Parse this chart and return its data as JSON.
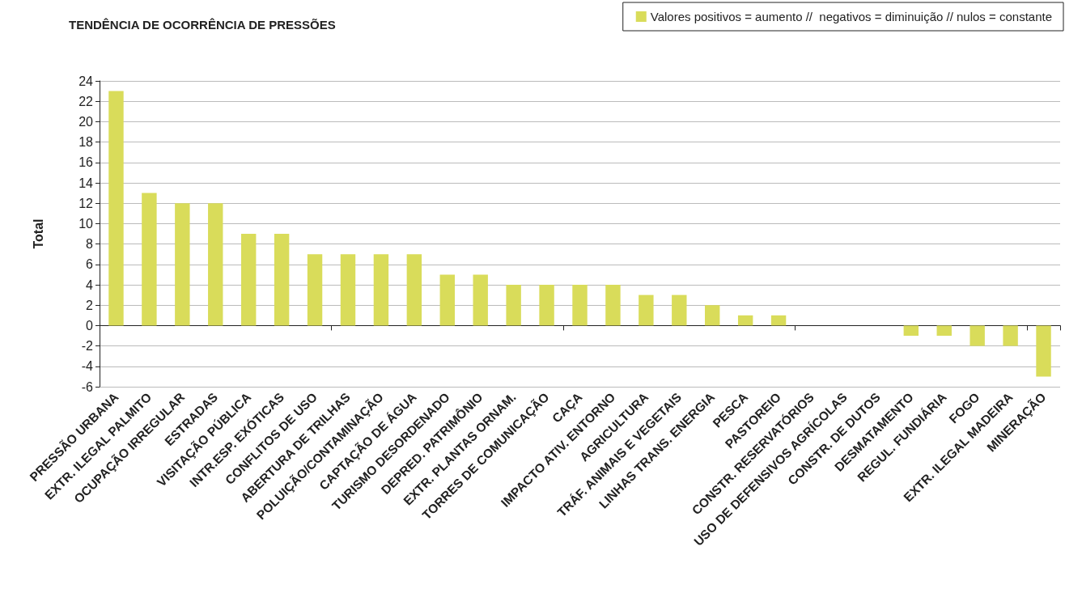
{
  "chart_data": {
    "type": "bar",
    "title": "TENDÊNCIA DE OCORRÊNCIA DE PRESSÕES",
    "ylabel": "Total",
    "categories": [
      "PRESSÃO URBANA",
      "EXTR. ILEGAL PALMITO",
      "OCUPAÇÃO IRREGULAR",
      "ESTRADAS",
      "VISITAÇÃO PÚBLICA",
      "INTR.ESP. EXÓTICAS",
      "CONFLITOS DE USO",
      "ABERTURA DE TRILHAS",
      "POLUIÇÃO/CONTAMINAÇÃO",
      "CAPTAÇÃO DE ÁGUA",
      "TURISMO DESORDENADO",
      "DEPRED. PATRIMÔNIO",
      "EXTR. PLANTAS ORNAM.",
      "TORRES DE COMUNICAÇÃO",
      "CAÇA",
      "IMPACTO ATIV. ENTORNO",
      "AGRICULTURA",
      "TRÁF. ANIMAIS E VEGETAIS",
      "LINHAS TRANS. ENERGIA",
      "PESCA",
      "PASTOREIO",
      "CONSTR. RESERVATÓRIOS",
      "USO DE DEFENSIVOS AGRÍCOLAS",
      "CONSTR. DE DUTOS",
      "DESMATAMENTO",
      "REGUL. FUNDIÁRIA",
      "FOGO",
      "EXTR. ILEGAL MADEIRA",
      "MINERAÇÃO"
    ],
    "series": [
      {
        "name": "Valores positivos = aumento //  negativos = diminuição // nulos = constante",
        "color": "#d9dc5a",
        "values": [
          23,
          13,
          12,
          12,
          9,
          9,
          7,
          7,
          7,
          7,
          5,
          5,
          4,
          4,
          4,
          4,
          3,
          3,
          2,
          1,
          1,
          0,
          0,
          0,
          -1,
          -1,
          -2,
          -2,
          -5
        ]
      }
    ],
    "ylim": [
      -6,
      24
    ],
    "yticks": [
      -6,
      -4,
      -2,
      0,
      2,
      4,
      6,
      8,
      10,
      12,
      14,
      16,
      18,
      20,
      22,
      24
    ],
    "grid": "y",
    "legend": "top right"
  }
}
